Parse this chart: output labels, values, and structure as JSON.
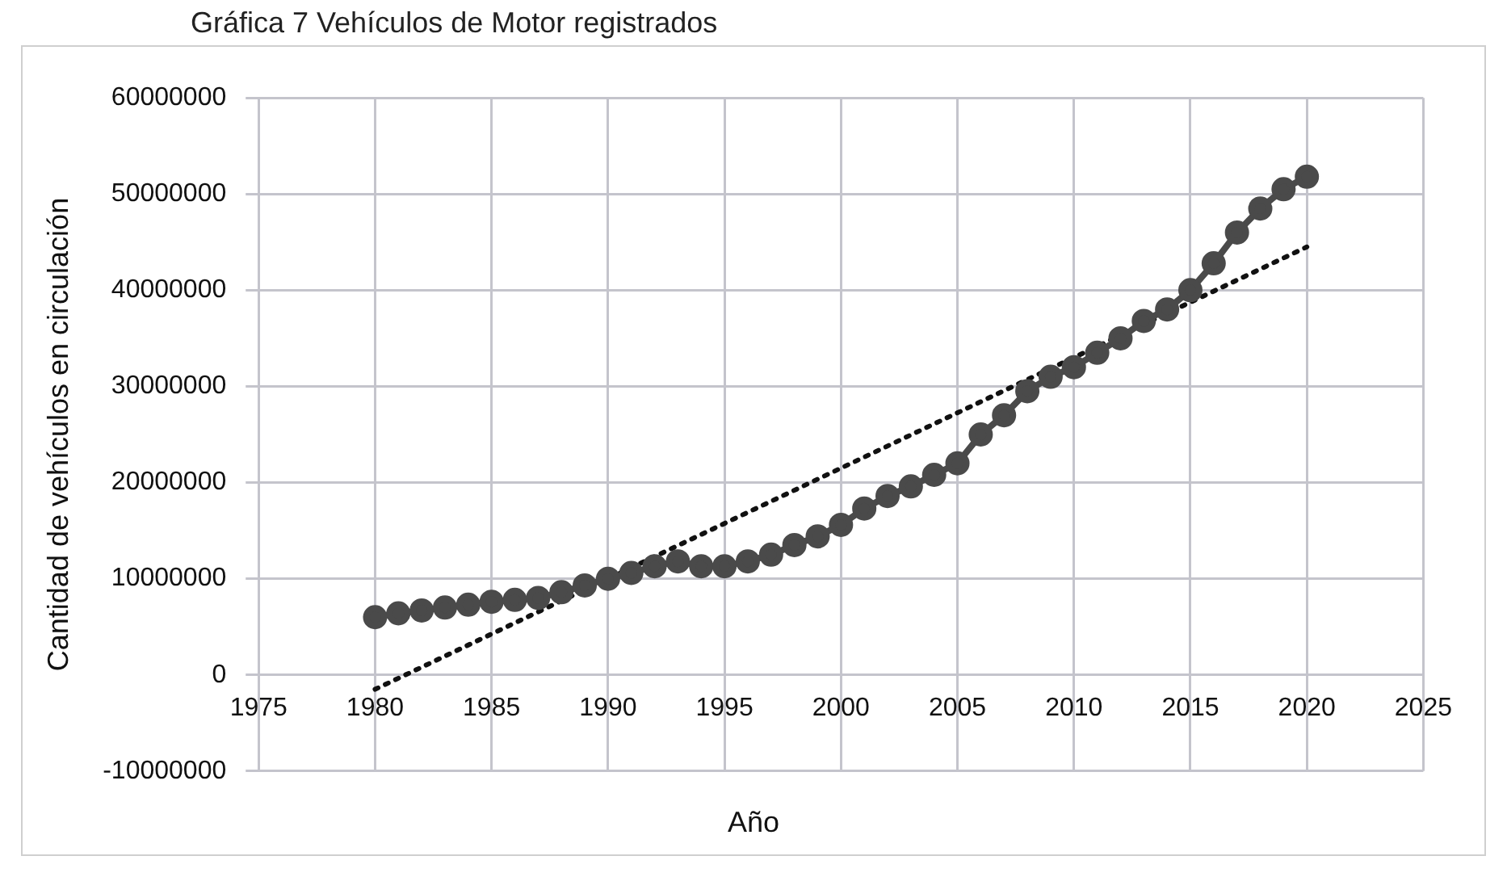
{
  "chart_data": {
    "type": "line",
    "title": "Gráfica 7 Vehículos de Motor registrados",
    "xlabel": "Año",
    "ylabel": "Cantidad de vehículos en circulación",
    "x": [
      1980,
      1981,
      1982,
      1983,
      1984,
      1985,
      1986,
      1987,
      1988,
      1989,
      1990,
      1991,
      1992,
      1993,
      1994,
      1995,
      1996,
      1997,
      1998,
      1999,
      2000,
      2001,
      2002,
      2003,
      2004,
      2005,
      2006,
      2007,
      2008,
      2009,
      2010,
      2011,
      2012,
      2013,
      2014,
      2015,
      2016,
      2017,
      2018,
      2019,
      2020
    ],
    "series": [
      {
        "color": "#4a4a4a",
        "marker": "circle",
        "line_style": "solid",
        "values": [
          6000000,
          6400000,
          6700000,
          7000000,
          7300000,
          7600000,
          7800000,
          8000000,
          8600000,
          9300000,
          10000000,
          10600000,
          11300000,
          11800000,
          11300000,
          11300000,
          11800000,
          12500000,
          13500000,
          14400000,
          15600000,
          17300000,
          18600000,
          19600000,
          20800000,
          22000000,
          25000000,
          27000000,
          29500000,
          31000000,
          32000000,
          33500000,
          35000000,
          36800000,
          38000000,
          40000000,
          42800000,
          46000000,
          48500000,
          50500000,
          51800000
        ]
      },
      {
        "color": "#111111",
        "marker": "none",
        "line_style": "dotted",
        "x": [
          1980,
          2020
        ],
        "values": [
          -1500000,
          44500000
        ]
      }
    ],
    "xlim": [
      1975,
      2025
    ],
    "xticks": [
      1975,
      1980,
      1985,
      1990,
      1995,
      2000,
      2005,
      2010,
      2015,
      2020,
      2025
    ],
    "ylim": [
      -10000000,
      60000000
    ],
    "yticks": [
      -10000000,
      0,
      10000000,
      20000000,
      30000000,
      40000000,
      50000000,
      60000000
    ],
    "grid": true,
    "legend": false
  }
}
